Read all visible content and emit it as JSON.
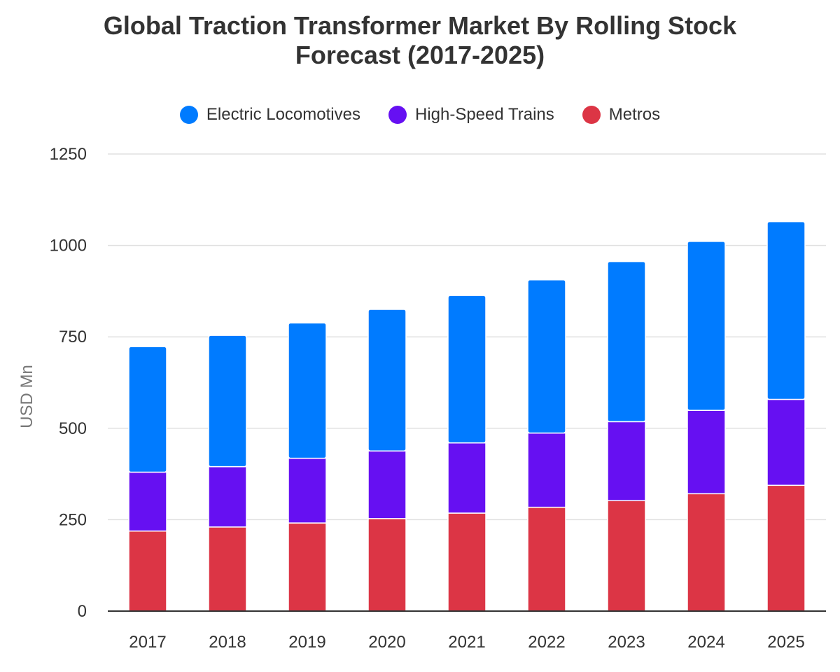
{
  "chart_data": {
    "type": "bar",
    "stacked": true,
    "title": "Global Traction Transformer Market By Rolling Stock Forecast (2017-2025)",
    "title_lines": [
      "Global Traction Transformer Market By Rolling Stock",
      "Forecast (2017-2025)"
    ],
    "xlabel": "",
    "ylabel": "USD Mn",
    "ylim": [
      0,
      1250
    ],
    "yticks": [
      0,
      250,
      500,
      750,
      1000,
      1250
    ],
    "grid": true,
    "legend_position": "top-center",
    "categories": [
      "2017",
      "2018",
      "2019",
      "2020",
      "2021",
      "2022",
      "2023",
      "2024",
      "2025"
    ],
    "series": [
      {
        "name": "Metros",
        "color": "#dc3545",
        "values": [
          219,
          230,
          241,
          253,
          268,
          284,
          302,
          321,
          344
        ]
      },
      {
        "name": "High-Speed Trains",
        "color": "#6610f2",
        "values": [
          161,
          165,
          177,
          185,
          192,
          203,
          216,
          228,
          235
        ]
      },
      {
        "name": "Electric Locomotives",
        "color": "#007bff",
        "values": [
          343,
          359,
          370,
          387,
          403,
          419,
          438,
          462,
          486
        ]
      }
    ],
    "legend_order": [
      "Electric Locomotives",
      "High-Speed Trains",
      "Metros"
    ]
  }
}
